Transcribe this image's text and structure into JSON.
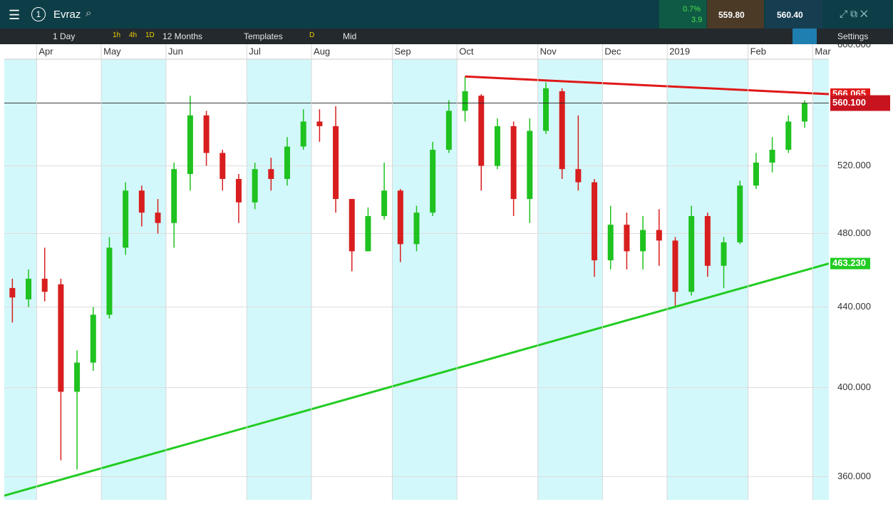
{
  "header": {
    "instrument": "Evraz",
    "account": "1",
    "change_pct": "0.7%",
    "change_pts": "3.9",
    "sell": "559.80",
    "buy": "560.40"
  },
  "toolbar": {
    "interval": "1 Day",
    "quick": [
      "1h",
      "4h",
      "1D"
    ],
    "range": "12 Months",
    "templates": "Templates",
    "mode": "D",
    "price_type": "Mid",
    "settings": "Settings"
  },
  "chart_data": {
    "type": "candlestick",
    "log_scale": true,
    "categories": [
      null,
      null,
      "Apr",
      null,
      null,
      null,
      "May",
      null,
      null,
      null,
      "Jun",
      null,
      null,
      null,
      null,
      "Jul",
      null,
      null,
      null,
      "Aug",
      null,
      null,
      null,
      null,
      "Sep",
      null,
      null,
      null,
      "Oct",
      null,
      null,
      null,
      null,
      "Nov",
      null,
      null,
      null,
      "Dec",
      null,
      null,
      null,
      "2019",
      null,
      null,
      null,
      null,
      "Feb",
      null,
      null,
      null,
      "Mar"
    ],
    "open": [
      450,
      444,
      455,
      452,
      398,
      412,
      436,
      472,
      505,
      492,
      486,
      515,
      552,
      528,
      512,
      498,
      518,
      512,
      532,
      548,
      545,
      500,
      470,
      490,
      505,
      474,
      492,
      530,
      555,
      565,
      520,
      545,
      500,
      542,
      568,
      518,
      510,
      465,
      485,
      470,
      482,
      476,
      448,
      490,
      462,
      475,
      508,
      522,
      530,
      548,
      null
    ],
    "high": [
      455,
      460,
      472,
      455,
      418,
      440,
      478,
      510,
      508,
      500,
      522,
      565,
      555,
      530,
      515,
      522,
      525,
      538,
      556,
      556,
      558,
      500,
      495,
      522,
      506,
      496,
      535,
      562,
      578,
      566,
      550,
      548,
      550,
      574,
      570,
      552,
      512,
      496,
      492,
      490,
      494,
      478,
      496,
      492,
      478,
      511,
      528,
      538,
      552,
      562,
      null
    ],
    "low": [
      432,
      440,
      443,
      367,
      363,
      408,
      434,
      468,
      484,
      480,
      472,
      505,
      520,
      505,
      486,
      494,
      505,
      508,
      530,
      535,
      492,
      459,
      470,
      488,
      464,
      470,
      490,
      528,
      548,
      505,
      518,
      490,
      486,
      540,
      512,
      505,
      456,
      460,
      460,
      460,
      462,
      440,
      446,
      456,
      450,
      474,
      506,
      516,
      528,
      544,
      null
    ],
    "close": [
      445,
      455,
      448,
      398,
      412,
      436,
      472,
      505,
      492,
      486,
      518,
      552,
      528,
      512,
      498,
      518,
      512,
      532,
      548,
      545,
      500,
      470,
      490,
      505,
      474,
      492,
      530,
      555,
      568,
      520,
      545,
      500,
      542,
      570,
      518,
      510,
      465,
      485,
      470,
      482,
      476,
      448,
      490,
      462,
      475,
      508,
      522,
      530,
      548,
      560.1,
      null
    ],
    "up_color": "#1fc21f",
    "down_color": "#d81e1e",
    "ylim": [
      352,
      600
    ],
    "yticks": [
      {
        "value": 360,
        "label": "360.000"
      },
      {
        "value": 400,
        "label": "400.000"
      },
      {
        "value": 440,
        "label": "440.000"
      },
      {
        "value": 480,
        "label": "480.000"
      },
      {
        "value": 520,
        "label": "520.000"
      },
      {
        "value": 600,
        "label": "600.000"
      }
    ],
    "last_price": {
      "value": 560.1,
      "label": "560.100",
      "color": "#c8141e"
    },
    "trendlines": [
      {
        "color": "#e01818",
        "values": [
          578,
          566.065
        ],
        "label": "566.065"
      },
      {
        "color": "#22cc22",
        "values": [
          352,
          463.23
        ],
        "label": "463.230"
      }
    ]
  }
}
